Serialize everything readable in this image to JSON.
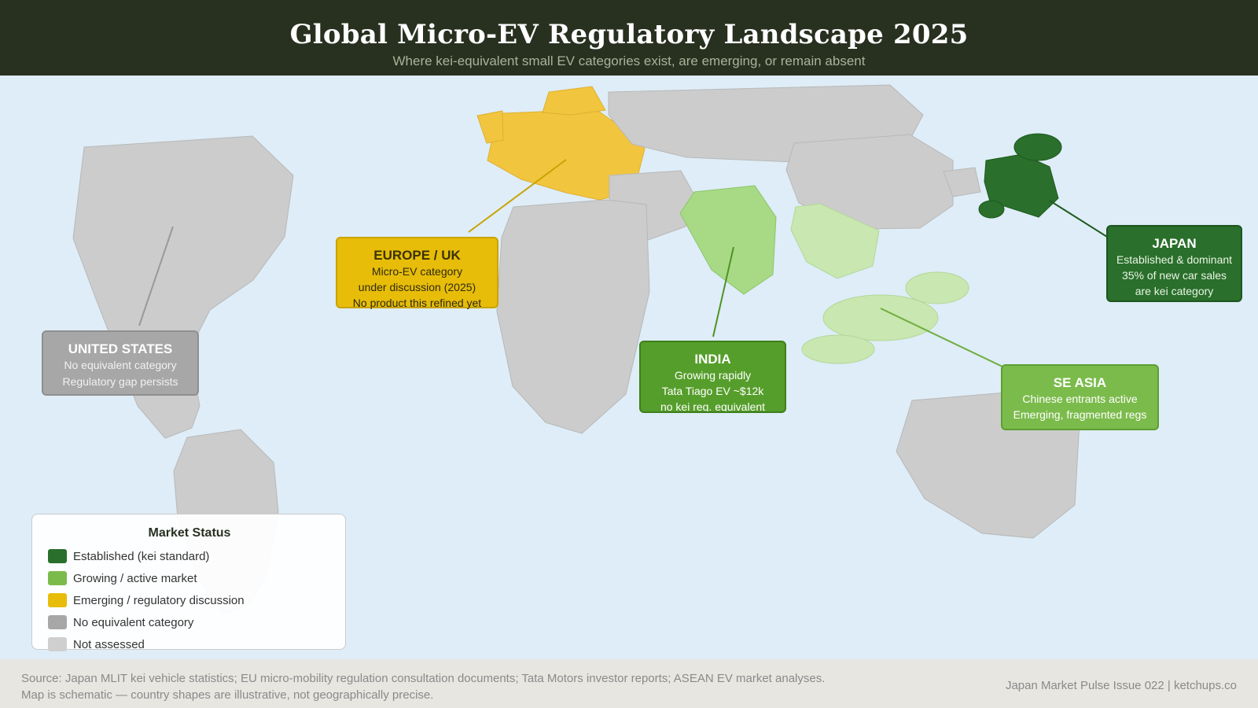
{
  "header": {
    "title": "Global Micro-EV Regulatory Landscape 2025",
    "subtitle": "Where kei-equivalent small EV categories exist, are emerging, or remain absent"
  },
  "colors": {
    "established": "#2a6f2b",
    "growing": "#7bbb4b",
    "emerging": "#e7bd09",
    "no_equivalent": "#a7a7a7",
    "not_assessed": "#cfcfcf",
    "ocean": "#deedf7",
    "header_bg": "#283020"
  },
  "regions": [
    {
      "id": "united-states",
      "status": "no_equivalent",
      "title": "UNITED STATES",
      "lines": [
        "No equivalent category",
        "Regulatory gap persists"
      ]
    },
    {
      "id": "europe-uk",
      "status": "emerging",
      "title": "EUROPE / UK",
      "lines": [
        "Micro-EV category",
        "under discussion (2025)",
        "No product this refined yet"
      ]
    },
    {
      "id": "india",
      "status": "growing",
      "title": "INDIA",
      "lines": [
        "Growing rapidly",
        "Tata Tiago EV ~$12k",
        "no kei reg. equivalent"
      ]
    },
    {
      "id": "se-asia",
      "status": "growing",
      "title": "SE ASIA",
      "lines": [
        "Chinese entrants active",
        "Emerging, fragmented regs"
      ]
    },
    {
      "id": "japan",
      "status": "established",
      "title": "JAPAN",
      "lines": [
        "Established & dominant",
        "35% of new car sales",
        "are kei category"
      ]
    }
  ],
  "legend": {
    "title": "Market Status",
    "items": [
      {
        "label": "Established (kei standard)",
        "color": "#2a6f2b"
      },
      {
        "label": "Growing / active market",
        "color": "#7bbb4b"
      },
      {
        "label": "Emerging / regulatory discussion",
        "color": "#e7bd09"
      },
      {
        "label": "No equivalent category",
        "color": "#a7a7a7"
      },
      {
        "label": "Not assessed",
        "color": "#cfcfcf"
      }
    ]
  },
  "footer": {
    "source_line1": "Source: Japan MLIT kei vehicle statistics; EU micro-mobility regulation consultation documents; Tata Motors investor reports; ASEAN EV market analyses.",
    "source_line2": "Map is schematic — country shapes are illustrative, not geographically precise.",
    "credit": "Japan Market Pulse Issue 022 | ketchups.co"
  }
}
